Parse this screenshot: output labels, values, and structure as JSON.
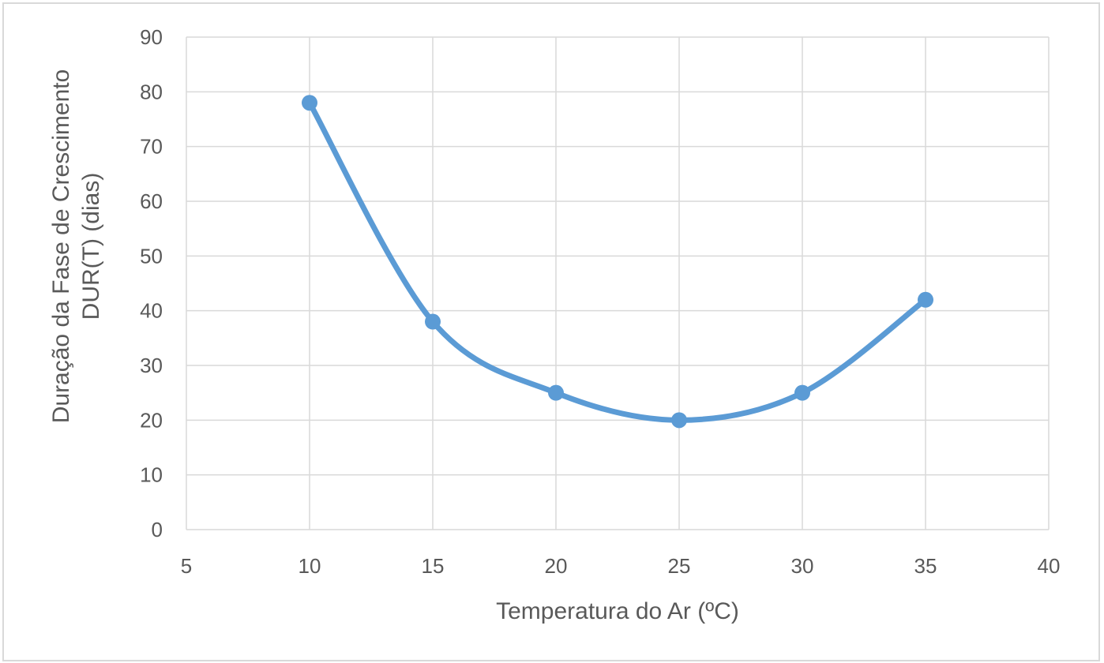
{
  "chart_data": {
    "type": "scatter",
    "smooth": true,
    "markers": true,
    "x": [
      10,
      15,
      20,
      25,
      30,
      35
    ],
    "series": [
      {
        "values": [
          78,
          38,
          25,
          20,
          25,
          42
        ],
        "color": "#5b9bd5"
      }
    ],
    "xlabel": "Temperatura do Ar (ºC)",
    "ylabel_line1": "Duração da Fase de Crescimento",
    "ylabel_line2": "DUR(T)  (dias)",
    "xlim": [
      5,
      40
    ],
    "ylim": [
      0,
      90
    ],
    "xticks": [
      5,
      10,
      15,
      20,
      25,
      30,
      35,
      40
    ],
    "yticks": [
      0,
      10,
      20,
      30,
      40,
      50,
      60,
      70,
      80,
      90
    ],
    "grid": true,
    "legend": "none"
  },
  "colors": {
    "grid": "#d9d9d9",
    "text": "#595959",
    "line": "#5b9bd5"
  }
}
